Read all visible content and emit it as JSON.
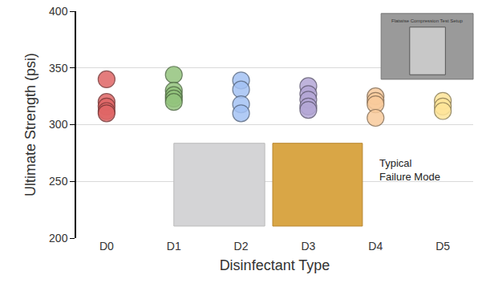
{
  "chart_data": {
    "type": "scatter",
    "categories": [
      "D0",
      "D1",
      "D2",
      "D3",
      "D4",
      "D5"
    ],
    "values": [
      [
        340,
        320,
        316,
        312,
        310
      ],
      [
        344,
        330,
        326,
        323,
        320
      ],
      [
        339,
        331,
        318,
        310
      ],
      [
        334,
        327,
        322,
        316,
        313
      ],
      [
        325,
        321,
        318,
        306
      ],
      [
        321,
        316,
        312
      ]
    ],
    "colors": [
      "#e06666",
      "#93c47d",
      "#a4c2f4",
      "#b4a7d6",
      "#f9cb9c",
      "#ffe599"
    ],
    "marker": "circle",
    "x_label": "Disinfectant Type",
    "y_label": "Ultimate Strength (psi)",
    "ylim": [
      200,
      400
    ],
    "yticks": [
      200,
      250,
      300,
      350,
      400
    ],
    "grid": true,
    "annotations": [
      {
        "text_lines": [
          "Typical",
          "Failure Mode"
        ]
      },
      {
        "text_lines": [
          "Flatwise Compression Test Setup"
        ]
      }
    ]
  }
}
